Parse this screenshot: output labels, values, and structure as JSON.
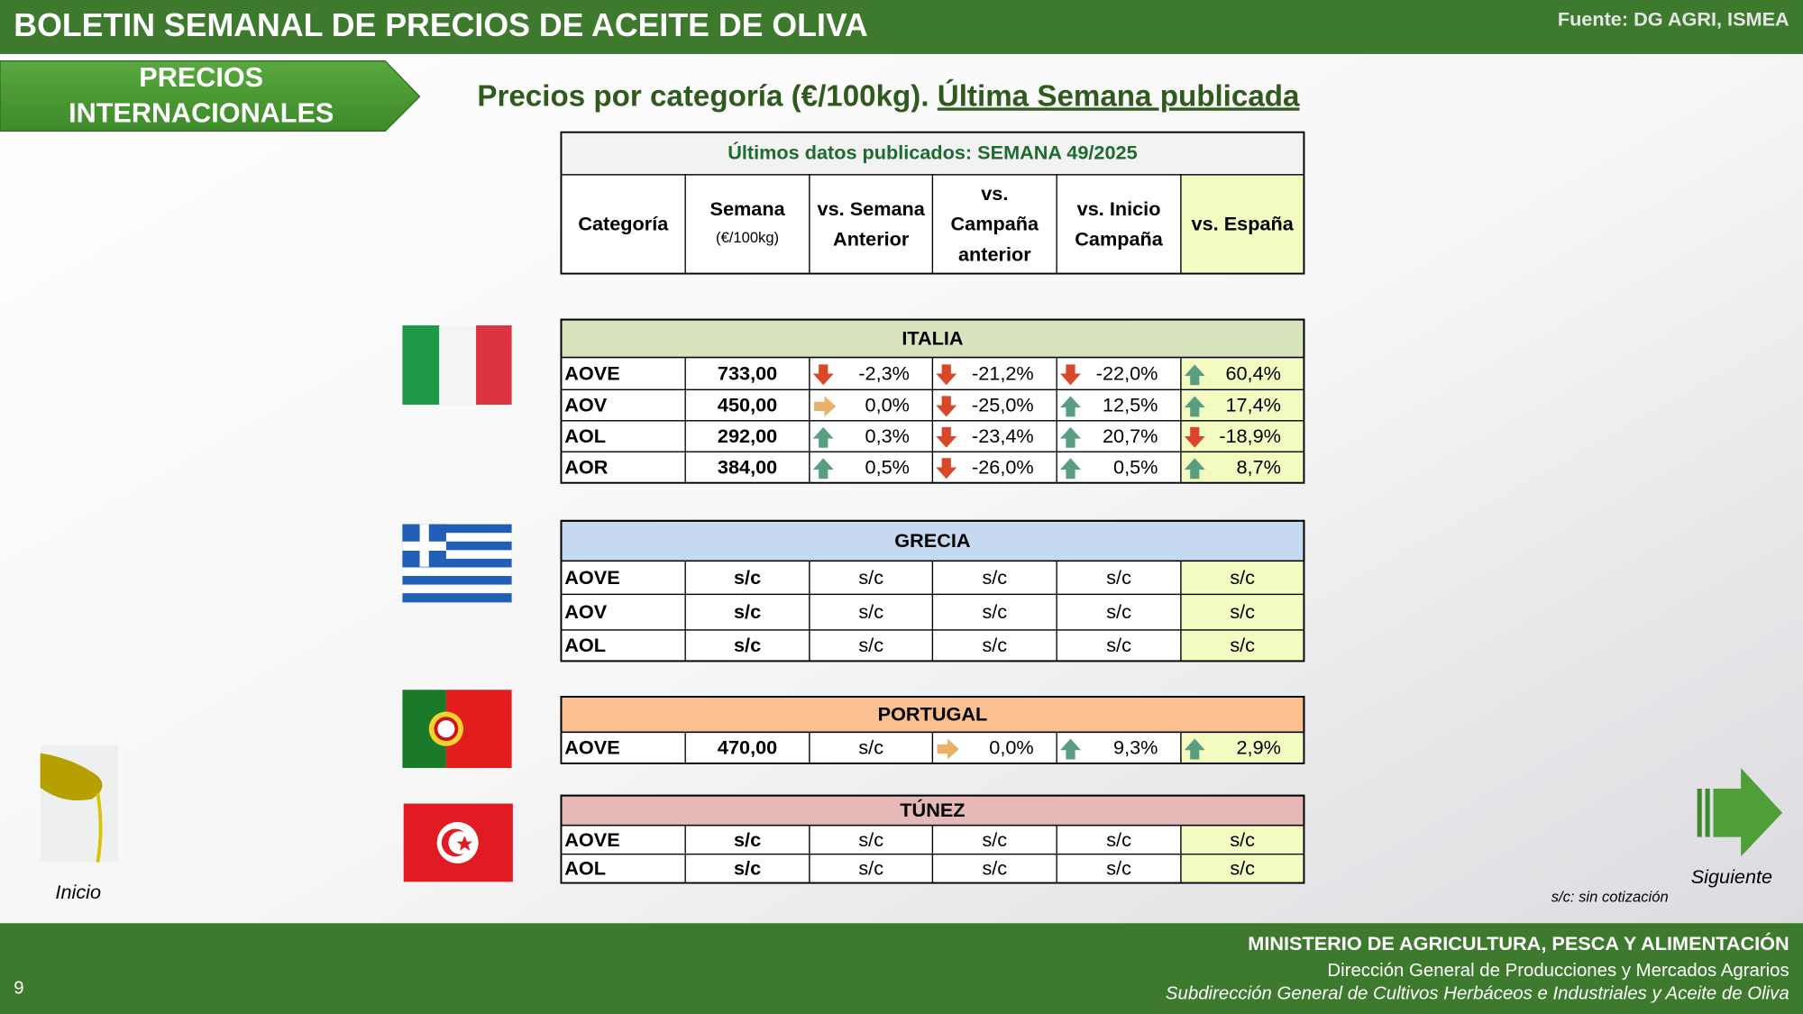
{
  "header": {
    "title": "BOLETIN SEMANAL DE PRECIOS DE ACEITE DE OLIVA",
    "source": "Fuente: DG AGRI, ISMEA"
  },
  "section_tab": [
    "PRECIOS",
    "INTERNACIONALES"
  ],
  "subtitle": {
    "text": "Precios por categoría (€/100kg). ",
    "link": "Última Semana publicada"
  },
  "table": {
    "caption": "Últimos datos publicados: SEMANA 49/2025",
    "columns": [
      [
        "Categoría"
      ],
      [
        "Semana",
        "(€/100kg)"
      ],
      [
        "vs. Semana",
        "Anterior"
      ],
      [
        "vs.",
        "Campaña",
        "anterior"
      ],
      [
        "vs. Inicio",
        "Campaña"
      ],
      [
        "vs. España"
      ]
    ],
    "groups": [
      {
        "name": "ITALIA",
        "color": "#d7e4bd",
        "rows": [
          [
            "AOVE",
            "733,00",
            "-2,3%",
            "-21,2%",
            "-22,0%",
            "60,4%"
          ],
          [
            "AOV",
            "450,00",
            "0,0%",
            "-25,0%",
            "12,5%",
            "17,4%"
          ],
          [
            "AOL",
            "292,00",
            "0,3%",
            "-23,4%",
            "20,7%",
            "-18,9%"
          ],
          [
            "AOR",
            "384,00",
            "0,5%",
            "-26,0%",
            "0,5%",
            "8,7%"
          ]
        ]
      },
      {
        "name": "GRECIA",
        "color": "#c5d9f1",
        "rows": [
          [
            "AOVE",
            "s/c",
            "s/c",
            "s/c",
            "s/c",
            "s/c"
          ],
          [
            "AOV",
            "s/c",
            "s/c",
            "s/c",
            "s/c",
            "s/c"
          ],
          [
            "AOL",
            "s/c",
            "s/c",
            "s/c",
            "s/c",
            "s/c"
          ]
        ]
      },
      {
        "name": "PORTUGAL",
        "color": "#fac090",
        "rows": [
          [
            "AOVE",
            "470,00",
            "s/c",
            "0,0%",
            "9,3%",
            "2,9%"
          ]
        ]
      },
      {
        "name": "TÚNEZ",
        "color": "#e6b9b8",
        "rows": [
          [
            "AOVE",
            "s/c",
            "s/c",
            "s/c",
            "s/c",
            "s/c"
          ],
          [
            "AOL",
            "s/c",
            "s/c",
            "s/c",
            "s/c",
            "s/c"
          ]
        ]
      }
    ]
  },
  "note": "s/c: sin cotización",
  "nav": {
    "home": "Inicio",
    "next": "Siguiente"
  },
  "footer": {
    "ministry": "MINISTERIO DE AGRICULTURA, PESCA Y ALIMENTACIÓN",
    "line2": "Dirección General de Producciones y Mercados Agrarios",
    "line3": "Subdirección General de Cultivos Herbáceos e Industriales y Aceite de Oliva",
    "page": "9"
  }
}
